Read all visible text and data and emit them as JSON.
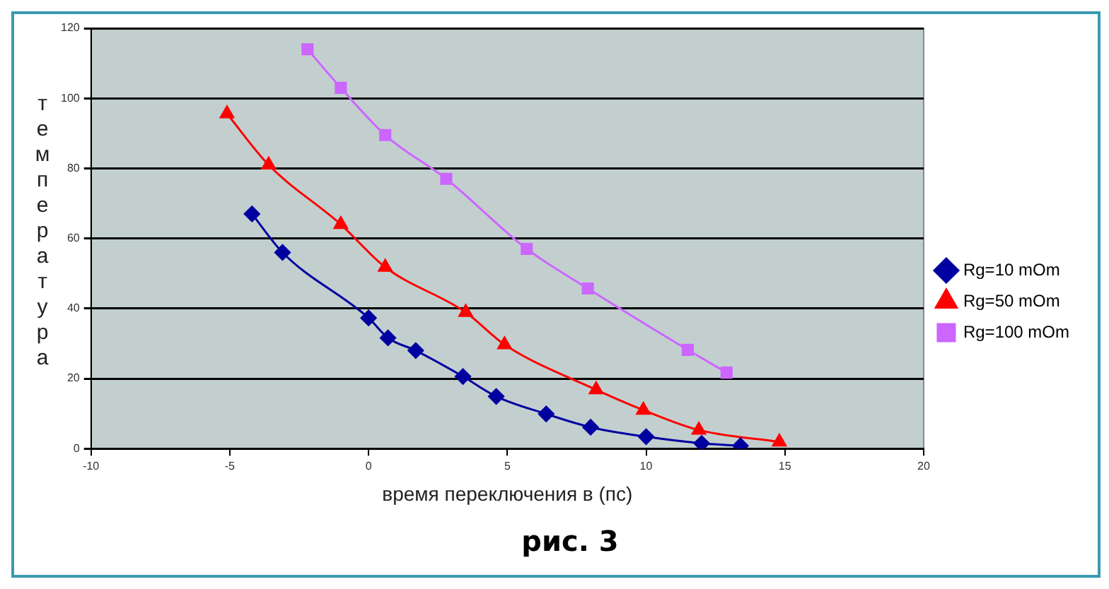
{
  "chart_data": {
    "type": "line",
    "title": "рис. 3",
    "xlabel": "время переключения в (пс)",
    "ylabel": "температура",
    "xlim": [
      -10,
      20
    ],
    "xticks": [
      -10,
      -5,
      0,
      5,
      10,
      15,
      20
    ],
    "ylim": [
      0,
      120
    ],
    "yticks": [
      0,
      20,
      40,
      60,
      80,
      100,
      120
    ],
    "grid": "y",
    "legend": "right",
    "series": [
      {
        "name": "Rg=10 mOm",
        "color": "#0000a0",
        "marker": "diamond",
        "x": [
          -4.2,
          -3.1,
          0,
          0.7,
          1.7,
          3.4,
          4.6,
          6.4,
          8,
          10,
          12,
          13.4
        ],
        "values": [
          67,
          56,
          37.3,
          31.6,
          28,
          20.6,
          14.9,
          9.9,
          6.1,
          3.4,
          1.5,
          0.8
        ]
      },
      {
        "name": "Rg=50 mOm",
        "color": "#ff0000",
        "marker": "triangle",
        "x": [
          -5.1,
          -3.6,
          -1,
          0.6,
          3.5,
          4.9,
          8.2,
          9.9,
          11.9,
          14.8
        ],
        "values": [
          95.6,
          81,
          64,
          51.8,
          38.9,
          29.7,
          16.8,
          11,
          5.3,
          1.9
        ]
      },
      {
        "name": "Rg=100 mOm",
        "color": "#cc66ff",
        "marker": "square",
        "x": [
          -2.2,
          -1,
          0.6,
          2.8,
          5.7,
          7.9,
          11.5,
          12.9
        ],
        "values": [
          114,
          103,
          89.5,
          77,
          57,
          45.7,
          28.2,
          21.7
        ]
      }
    ]
  }
}
